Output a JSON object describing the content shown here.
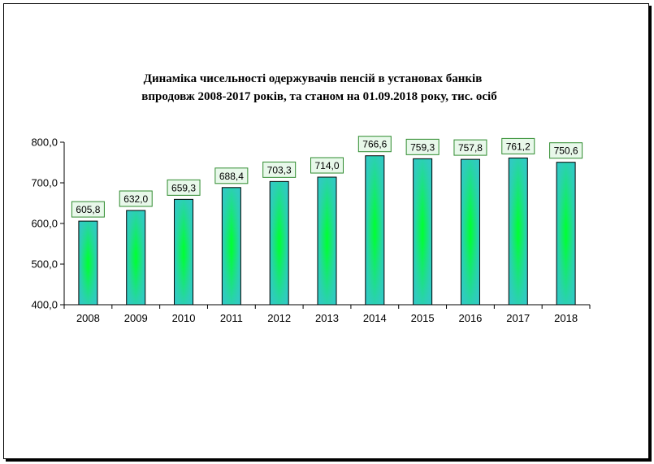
{
  "chart_data": {
    "type": "bar",
    "title_lines": [
      "Динаміка чисельності одержувачів пенсій в установах банків",
      "впродовж 2008-2017 років, та станом на 01.09.2018 року, тис. осіб"
    ],
    "categories": [
      "2008",
      "2009",
      "2010",
      "2011",
      "2012",
      "2013",
      "2014",
      "2015",
      "2016",
      "2017",
      "2018"
    ],
    "values": [
      605.8,
      632.0,
      659.3,
      688.4,
      703.3,
      714.0,
      766.6,
      759.3,
      757.8,
      761.2,
      750.6
    ],
    "value_labels": [
      "605,8",
      "632,0",
      "659,3",
      "688,4",
      "703,3",
      "714,0",
      "766,6",
      "759,3",
      "757,8",
      "761,2",
      "750,6"
    ],
    "ylim": [
      400,
      800
    ],
    "yticks": [
      400,
      500,
      600,
      700,
      800
    ],
    "ytick_labels": [
      "400,0",
      "500,0",
      "600,0",
      "700,0",
      "800,0"
    ],
    "grid": false,
    "legend": "none",
    "colors": {
      "bar_edge": "#33c8c8",
      "bar_center": "#00ff33",
      "bar_outline": "#000000",
      "label_fill": "#e8f8ea",
      "label_border": "#2e8b2e"
    }
  }
}
